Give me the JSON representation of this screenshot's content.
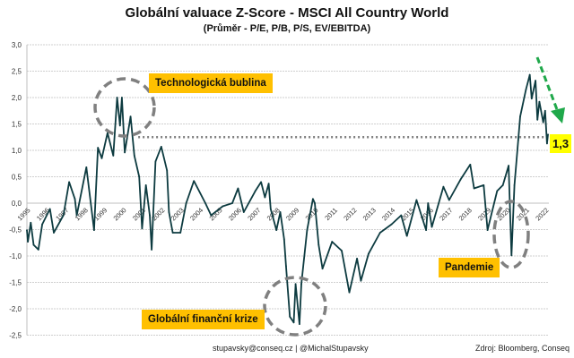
{
  "chart_data": {
    "type": "line",
    "title": "Globální valuace Z-Score - MSCI All Country World",
    "subtitle": "(Průměr - P/E, P/B, P/S, EV/EBITDA)",
    "xlabel": "",
    "ylabel": "",
    "ylim": [
      -2.5,
      3.0
    ],
    "xlim": [
      1995,
      2022.2
    ],
    "yticks": [
      "3,0",
      "2,5",
      "2,0",
      "1,5",
      "1,0",
      "0,5",
      "0,0",
      "-0,5",
      "-1,0",
      "-1,5",
      "-2,0",
      "-2,5"
    ],
    "ytick_values": [
      3.0,
      2.5,
      2.0,
      1.5,
      1.0,
      0.5,
      0.0,
      -0.5,
      -1.0,
      -1.5,
      -2.0,
      -2.5
    ],
    "xticks": [
      "1995",
      "1996",
      "1997",
      "1998",
      "1999",
      "2000",
      "2001",
      "2002",
      "2003",
      "2004",
      "2005",
      "2006",
      "2007",
      "2008",
      "2009",
      "2010",
      "2011",
      "2012",
      "2013",
      "2014",
      "2015",
      "2016",
      "2017",
      "2018",
      "2019",
      "2020",
      "2021",
      "2022"
    ],
    "grid": true,
    "series_color": "#0d3b40",
    "x": [
      1995.0,
      1995.05,
      1995.2,
      1995.35,
      1995.6,
      1995.8,
      1996.2,
      1996.4,
      1996.9,
      1997.2,
      1997.5,
      1997.6,
      1998.1,
      1998.5,
      1998.7,
      1998.9,
      1999.2,
      1999.5,
      1999.7,
      1999.85,
      1999.95,
      2000.1,
      2000.4,
      2000.6,
      2000.85,
      2001.0,
      2001.2,
      2001.4,
      2001.5,
      2001.7,
      2002.0,
      2002.3,
      2002.4,
      2002.6,
      2003.0,
      2003.3,
      2003.7,
      2004.3,
      2004.6,
      2005.2,
      2005.7,
      2006.0,
      2006.3,
      2006.9,
      2007.2,
      2007.4,
      2007.6,
      2007.7,
      2008.0,
      2008.2,
      2008.4,
      2008.5,
      2008.7,
      2008.9,
      2009.0,
      2009.2,
      2009.3,
      2009.6,
      2009.9,
      2010.0,
      2010.2,
      2010.4,
      2010.9,
      2011.4,
      2011.8,
      2012.2,
      2012.4,
      2012.8,
      2013.4,
      2014.0,
      2014.5,
      2014.8,
      2015.3,
      2015.8,
      2015.9,
      2016.1,
      2016.7,
      2017.0,
      2017.6,
      2018.1,
      2018.3,
      2018.8,
      2019.0,
      2019.5,
      2019.8,
      2020.1,
      2020.25,
      2020.4,
      2020.6,
      2020.7,
      2021.0,
      2021.2,
      2021.3,
      2021.5,
      2021.6,
      2021.7,
      2021.9,
      2022.0,
      2022.1,
      2022.15
    ],
    "y": [
      -0.51,
      -0.73,
      -0.37,
      -0.79,
      -0.88,
      -0.4,
      -0.11,
      -0.56,
      -0.23,
      0.4,
      0.08,
      -0.23,
      0.68,
      -0.51,
      1.05,
      0.85,
      1.33,
      0.9,
      2.0,
      1.47,
      2.0,
      0.96,
      1.64,
      0.9,
      0.5,
      -0.48,
      0.34,
      -0.23,
      -0.88,
      0.79,
      1.07,
      0.62,
      -0.17,
      -0.56,
      -0.56,
      0.0,
      0.42,
      0.0,
      -0.23,
      -0.06,
      0.0,
      0.28,
      -0.17,
      0.23,
      0.4,
      0.11,
      0.37,
      -0.11,
      -0.51,
      -0.17,
      -0.68,
      -1.19,
      -2.15,
      -2.26,
      -1.53,
      -2.29,
      -1.53,
      -0.51,
      0.08,
      0.0,
      -0.79,
      -1.24,
      -0.73,
      -0.9,
      -1.69,
      -1.05,
      -1.47,
      -0.96,
      -0.56,
      -0.4,
      -0.23,
      -0.62,
      0.06,
      -0.51,
      0.0,
      -0.45,
      0.31,
      0.06,
      0.45,
      0.73,
      0.28,
      0.34,
      -0.51,
      0.23,
      0.34,
      0.71,
      -0.99,
      0.34,
      1.19,
      1.64,
      2.15,
      2.43,
      1.98,
      2.32,
      1.58,
      1.92,
      1.53,
      1.75,
      1.13,
      1.3
    ],
    "reference_line": {
      "value": 1.25,
      "from": 2000.8,
      "to": 2022.1,
      "style": "dotted",
      "color": "#7f7f7f"
    },
    "last_value_label": "1,3",
    "annotations": [
      {
        "text": "Technologická bublina",
        "color": "#ffc000"
      },
      {
        "text": "Globální finanční krize",
        "color": "#ffc000"
      },
      {
        "text": "Pandemie",
        "color": "#ffc000"
      }
    ],
    "trend_arrow_color": "#1fa84a"
  },
  "footer": {
    "contact": "stupavsky@conseq.cz  |  @MichalStupavsky",
    "source": "Zdroj: Bloomberg, Conseq"
  }
}
